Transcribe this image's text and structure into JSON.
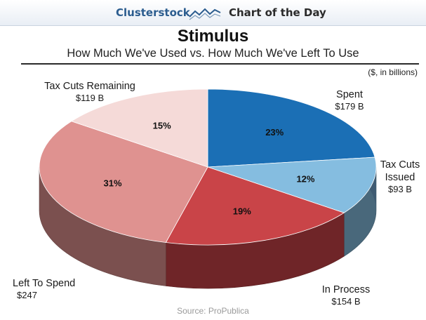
{
  "header": {
    "brand": "Clusterstock",
    "feature": "Chart of the Day"
  },
  "chart_data": {
    "type": "pie",
    "title": "Stimulus",
    "subtitle": "How Much We've Used vs. How Much We've Left To Use",
    "units_note": "($, in billions)",
    "source": "Source: ProPublica",
    "slices": [
      {
        "label": "Spent",
        "label_lines": [
          "Spent"
        ],
        "value_label": "$179 B",
        "value": 179,
        "percent": 23,
        "percent_label": "23%",
        "color": "#1b6fb5"
      },
      {
        "label": "Tax Cuts Issued",
        "label_lines": [
          "Tax Cuts",
          "Issued"
        ],
        "value_label": "$93 B",
        "value": 93,
        "percent": 12,
        "percent_label": "12%",
        "color": "#85bde0"
      },
      {
        "label": "In Process",
        "label_lines": [
          "In Process"
        ],
        "value_label": "$154 B",
        "value": 154,
        "percent": 19,
        "percent_label": "19%",
        "color": "#c94448"
      },
      {
        "label": "Left To Spend",
        "label_lines": [
          "Left To Spend"
        ],
        "value_label": "$247",
        "value": 247,
        "percent": 31,
        "percent_label": "31%",
        "color": "#df9290"
      },
      {
        "label": "Tax Cuts Remaining",
        "label_lines": [
          "Tax Cuts Remaining"
        ],
        "value_label": "$119 B",
        "value": 119,
        "percent": 15,
        "percent_label": "15%",
        "color": "#f5dad8"
      }
    ]
  }
}
